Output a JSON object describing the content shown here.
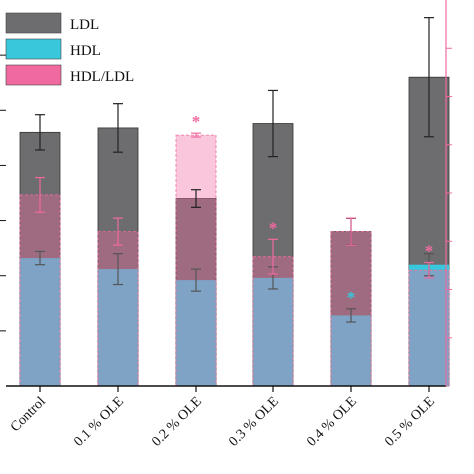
{
  "colors": {
    "ldl": "#6d6d6f",
    "hdl": "#39c7dc",
    "ratio": "#f06aa0",
    "axis": "#111111",
    "right_axis": "#f06aa0"
  },
  "chart_data": {
    "type": "bar",
    "categories": [
      "Control",
      "0.1 % OLE",
      "0.2 % OLE",
      "0.3 % OLE",
      "0.4 % OLE",
      "0.5 % OLE"
    ],
    "series": [
      {
        "name": "LDL",
        "values": [
          1.15,
          1.17,
          0.85,
          1.19,
          0.7,
          1.4
        ],
        "errors": [
          0.08,
          0.11,
          0.04,
          0.15,
          0.06,
          0.27
        ]
      },
      {
        "name": "HDL",
        "values": [
          0.58,
          0.53,
          0.48,
          0.49,
          0.32,
          0.55
        ],
        "errors": [
          0.03,
          0.07,
          0.05,
          0.05,
          0.03,
          0.05
        ]
      },
      {
        "name": "HDL/LDL",
        "values": [
          0.99,
          0.8,
          1.3,
          0.67,
          0.8,
          0.6
        ],
        "errors": [
          0.09,
          0.07,
          0.01,
          0.09,
          0.07,
          0.04
        ]
      }
    ],
    "significance": {
      "LDL": [
        false,
        false,
        false,
        false,
        false,
        false
      ],
      "HDL": [
        false,
        false,
        false,
        false,
        true,
        false
      ],
      "HDL/LDL": [
        false,
        false,
        true,
        true,
        false,
        true
      ]
    },
    "star_label": "*",
    "ylim_left": [
      0,
      1.75
    ],
    "ylim_right": [
      0,
      2.0
    ],
    "legend_position": "top-left",
    "grid": false
  }
}
